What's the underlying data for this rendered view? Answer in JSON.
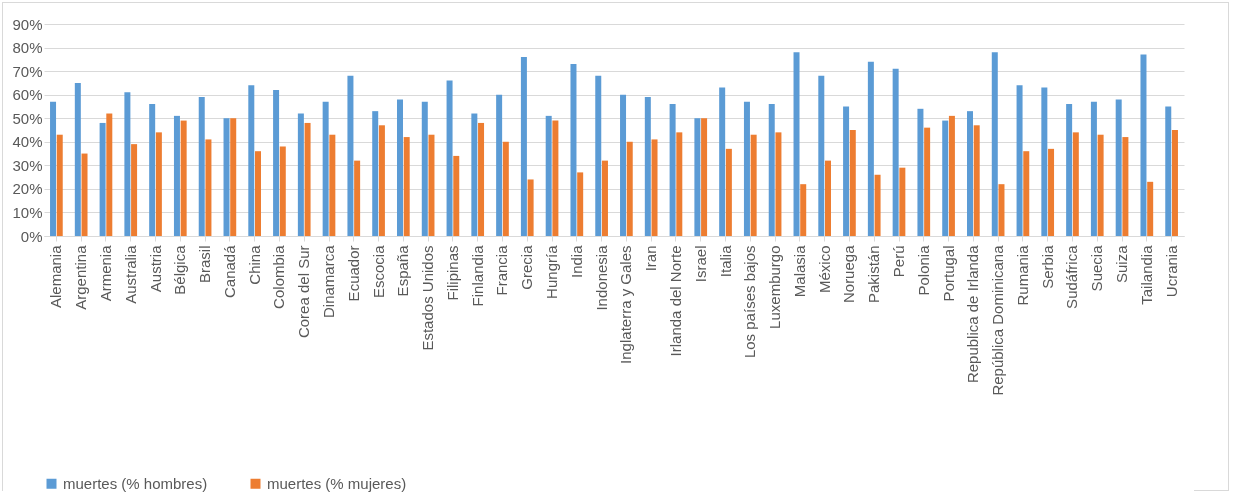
{
  "chart_data": {
    "type": "bar",
    "categories": [
      "Alemania",
      "Argentina",
      "Armenia",
      "Australia",
      "Austria",
      "Bélgica",
      "Brasil",
      "Canadá",
      "China",
      "Colombia",
      "Corea del Sur",
      "Dinamarca",
      "Ecuador",
      "Escocia",
      "España",
      "Estados Unidos",
      "Filipinas",
      "Finlandia",
      "Francia",
      "Grecia",
      "Hungría",
      "India",
      "Indonesia",
      "Inglaterra y Gales",
      "Iran",
      "Irlanda del Norte",
      "Israel",
      "Italia",
      "Los países bajos",
      "Luxemburgo",
      "Malasia",
      "México",
      "Noruega",
      "Pakistán",
      "Perú",
      "Polonia",
      "Portugal",
      "Republica de Irlanda",
      "República Dominicana",
      "Rumania",
      "Serbia",
      "Sudáfrica",
      "Suecia",
      "Suiza",
      "Tailandia",
      "Ucrania"
    ],
    "series": [
      {
        "name": "muertes (% hombres)",
        "color": "#5b9bd5",
        "values": [
          57,
          65,
          48,
          61,
          56,
          51,
          59,
          50,
          64,
          62,
          52,
          57,
          68,
          53,
          58,
          57,
          66,
          52,
          60,
          76,
          51,
          73,
          68,
          60,
          59,
          56,
          50,
          63,
          57,
          56,
          78,
          68,
          55,
          74,
          71,
          54,
          49,
          53,
          78,
          64,
          63,
          56,
          57,
          58,
          77,
          55
        ]
      },
      {
        "name": "muertes (% mujeres)",
        "color": "#ed7d31",
        "values": [
          43,
          35,
          52,
          39,
          44,
          49,
          41,
          50,
          36,
          38,
          48,
          43,
          32,
          47,
          42,
          43,
          34,
          48,
          40,
          24,
          49,
          27,
          32,
          40,
          41,
          44,
          50,
          37,
          43,
          44,
          22,
          32,
          45,
          26,
          29,
          46,
          51,
          47,
          22,
          36,
          37,
          44,
          43,
          42,
          23,
          45
        ]
      }
    ],
    "ylim": [
      0,
      90
    ],
    "yticks": [
      {
        "value": 0,
        "label": "0%"
      },
      {
        "value": 10,
        "label": "10%"
      },
      {
        "value": 20,
        "label": "20%"
      },
      {
        "value": 30,
        "label": "30%"
      },
      {
        "value": 40,
        "label": "40%"
      },
      {
        "value": 50,
        "label": "50%"
      },
      {
        "value": 60,
        "label": "60%"
      },
      {
        "value": 70,
        "label": "70%"
      },
      {
        "value": 80,
        "label": "80%"
      },
      {
        "value": 90,
        "label": "90%"
      }
    ],
    "grid": "y",
    "legend": "bottom"
  }
}
